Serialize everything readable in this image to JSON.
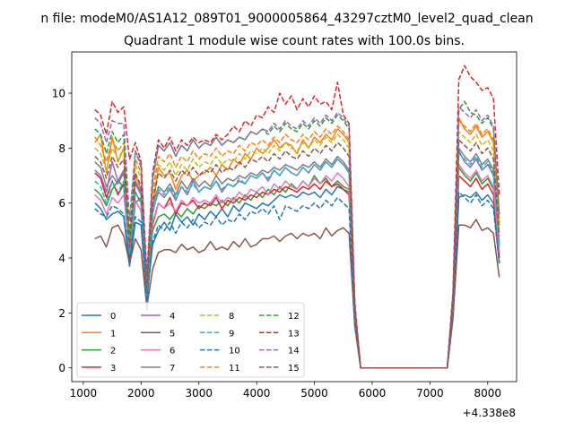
{
  "figure": {
    "suptitle": "n file: modeM0/AS1A12_089T01_9000005864_43297cztM0_level2_quad_clean",
    "title": "Quadrant 1 module wise count rates with 100.0s bins.",
    "offset_text": "+4.338e8"
  },
  "colors": [
    "#1f77b4",
    "#ff7f0e",
    "#2ca02c",
    "#d62728",
    "#9467bd",
    "#8c564b",
    "#e377c2",
    "#7f7f7f",
    "#bcbd22",
    "#17becf",
    "#1f77b4",
    "#ff7f0e",
    "#2ca02c",
    "#d62728",
    "#9467bd",
    "#8c564b"
  ],
  "chart_data": {
    "type": "line",
    "title": "Quadrant 1 module wise count rates with 100.0s bins.",
    "xlabel": "",
    "ylabel": "",
    "x_offset": 433800000,
    "xlim": [
      800,
      8500
    ],
    "ylim": [
      -0.5,
      11.5
    ],
    "xticks": [
      1000,
      2000,
      3000,
      4000,
      5000,
      6000,
      7000,
      8000
    ],
    "yticks": [
      0,
      2,
      4,
      6,
      8,
      10
    ],
    "grid": false,
    "legend": "lower-left, 4 columns",
    "x": [
      1200,
      1300,
      1400,
      1500,
      1600,
      1700,
      1800,
      1900,
      2000,
      2100,
      2200,
      2300,
      2400,
      2500,
      2600,
      2700,
      2800,
      2900,
      3000,
      3100,
      3200,
      3300,
      3400,
      3500,
      3600,
      3700,
      3800,
      3900,
      4000,
      4100,
      4200,
      4300,
      4400,
      4500,
      4600,
      4700,
      4800,
      4900,
      5000,
      5100,
      5200,
      5300,
      5400,
      5500,
      5600,
      5700,
      5800,
      5900,
      6000,
      6100,
      6200,
      6300,
      6400,
      6500,
      6600,
      6700,
      6800,
      6900,
      7000,
      7100,
      7200,
      7300,
      7400,
      7500,
      7600,
      7700,
      7800,
      7900,
      8000,
      8100,
      8200
    ],
    "series": [
      {
        "name": "0",
        "style": "solid",
        "values": [
          6.0,
          5.8,
          5.4,
          5.6,
          5.7,
          5.5,
          3.7,
          5.3,
          5.2,
          2.5,
          4.5,
          5.0,
          5.3,
          5.0,
          5.6,
          5.3,
          5.5,
          5.2,
          5.6,
          5.4,
          5.7,
          5.5,
          5.8,
          5.5,
          5.9,
          5.7,
          6.0,
          5.9,
          5.8,
          6.0,
          5.9,
          6.1,
          6.3,
          6.2,
          6.3,
          6.2,
          6.4,
          6.3,
          6.4,
          6.2,
          6.5,
          6.3,
          6.6,
          6.5,
          6.4,
          1.7,
          0,
          0,
          0,
          0,
          0,
          0,
          0,
          0,
          0,
          0,
          0,
          0,
          0,
          0,
          0,
          0,
          2.0,
          6.2,
          6.3,
          6.2,
          6.4,
          6.1,
          6.3,
          6.0,
          3.8
        ]
      },
      {
        "name": "1",
        "style": "solid",
        "values": [
          8.2,
          8.5,
          7.1,
          8.4,
          7.5,
          8.0,
          4.2,
          7.0,
          6.5,
          2.8,
          5.8,
          7.3,
          7.0,
          7.1,
          6.5,
          7.0,
          7.2,
          6.8,
          7.0,
          7.1,
          7.3,
          7.0,
          7.4,
          7.2,
          7.6,
          7.4,
          7.8,
          7.6,
          8.0,
          7.8,
          8.0,
          8.3,
          8.0,
          8.2,
          8.1,
          7.8,
          8.3,
          8.0,
          8.4,
          8.2,
          8.5,
          8.3,
          8.7,
          8.5,
          8.2,
          2.1,
          0,
          0,
          0,
          0,
          0,
          0,
          0,
          0,
          0,
          0,
          0,
          0,
          0,
          0,
          0,
          0,
          2.4,
          9.1,
          8.7,
          8.5,
          8.8,
          8.4,
          8.6,
          8.2,
          5.2
        ]
      },
      {
        "name": "2",
        "style": "solid",
        "values": [
          6.5,
          6.3,
          5.9,
          6.5,
          6.8,
          6.6,
          3.9,
          6.0,
          6.2,
          2.6,
          5.0,
          5.5,
          5.6,
          5.4,
          5.7,
          5.5,
          5.8,
          5.6,
          5.9,
          5.8,
          6.0,
          5.9,
          6.1,
          5.9,
          6.2,
          6.0,
          6.3,
          6.1,
          6.4,
          6.2,
          6.5,
          6.3,
          6.6,
          6.4,
          6.7,
          6.5,
          6.8,
          6.6,
          7.0,
          6.7,
          6.9,
          6.6,
          6.8,
          6.6,
          6.5,
          1.8,
          0,
          0,
          0,
          0,
          0,
          0,
          0,
          0,
          0,
          0,
          0,
          0,
          0,
          0,
          0,
          0,
          2.1,
          7.3,
          7.0,
          6.8,
          7.1,
          6.7,
          6.9,
          6.5,
          4.1
        ]
      },
      {
        "name": "3",
        "style": "solid",
        "values": [
          7.1,
          6.9,
          6.2,
          6.8,
          6.3,
          6.7,
          4.0,
          6.4,
          6.0,
          2.7,
          5.2,
          6.0,
          5.8,
          6.2,
          5.6,
          6.0,
          5.9,
          6.1,
          5.8,
          6.0,
          5.9,
          6.2,
          5.8,
          6.1,
          6.0,
          6.2,
          6.1,
          6.3,
          6.2,
          6.4,
          6.3,
          6.5,
          6.4,
          6.6,
          6.5,
          6.4,
          6.6,
          6.5,
          6.7,
          6.5,
          6.8,
          6.6,
          6.7,
          6.5,
          6.3,
          1.8,
          0,
          0,
          0,
          0,
          0,
          0,
          0,
          0,
          0,
          0,
          0,
          0,
          0,
          0,
          0,
          0,
          2.0,
          7.0,
          6.8,
          6.6,
          6.9,
          6.5,
          6.7,
          6.3,
          4.0
        ]
      },
      {
        "name": "4",
        "style": "solid",
        "values": [
          7.2,
          7.0,
          6.4,
          7.5,
          6.8,
          7.2,
          4.6,
          6.8,
          6.4,
          3.0,
          5.7,
          6.4,
          6.2,
          6.5,
          6.1,
          6.6,
          6.3,
          6.8,
          6.4,
          6.6,
          6.5,
          6.8,
          6.4,
          6.7,
          6.6,
          6.8,
          6.7,
          7.0,
          6.9,
          7.1,
          6.8,
          7.2,
          7.0,
          7.3,
          7.1,
          7.0,
          7.3,
          7.1,
          7.4,
          7.2,
          7.5,
          7.3,
          7.6,
          7.4,
          7.1,
          1.9,
          0,
          0,
          0,
          0,
          0,
          0,
          0,
          0,
          0,
          0,
          0,
          0,
          0,
          0,
          0,
          0,
          2.3,
          7.9,
          7.5,
          7.3,
          7.6,
          7.2,
          7.4,
          7.0,
          4.4
        ]
      },
      {
        "name": "5",
        "style": "solid",
        "values": [
          4.7,
          4.8,
          4.4,
          5.1,
          5.2,
          4.8,
          3.8,
          4.7,
          4.3,
          2.2,
          3.6,
          4.2,
          4.3,
          4.3,
          4.2,
          4.5,
          4.3,
          4.4,
          4.2,
          4.3,
          4.6,
          4.3,
          4.4,
          4.3,
          4.6,
          4.4,
          4.7,
          4.4,
          4.5,
          4.7,
          4.7,
          4.8,
          4.6,
          4.8,
          4.9,
          4.7,
          4.9,
          4.8,
          4.9,
          4.7,
          5.1,
          4.8,
          5.0,
          5.1,
          4.9,
          1.5,
          0,
          0,
          0,
          0,
          0,
          0,
          0,
          0,
          0,
          0,
          0,
          0,
          0,
          0,
          0,
          0,
          1.8,
          5.2,
          5.2,
          5.1,
          5.4,
          5.0,
          5.1,
          4.9,
          3.3
        ]
      },
      {
        "name": "6",
        "style": "solid",
        "values": [
          6.3,
          6.1,
          5.6,
          6.2,
          6.0,
          6.3,
          4.3,
          6.1,
          5.7,
          2.8,
          5.3,
          6.0,
          5.8,
          6.0,
          5.7,
          6.1,
          5.9,
          6.2,
          6.0,
          6.1,
          6.0,
          6.3,
          6.0,
          6.2,
          6.1,
          6.4,
          6.2,
          6.5,
          6.4,
          6.6,
          6.3,
          6.7,
          6.5,
          6.8,
          6.6,
          6.5,
          6.8,
          6.6,
          6.9,
          6.7,
          7.0,
          6.8,
          7.1,
          6.9,
          6.6,
          1.8,
          0,
          0,
          0,
          0,
          0,
          0,
          0,
          0,
          0,
          0,
          0,
          0,
          0,
          0,
          0,
          0,
          2.2,
          7.4,
          7.1,
          6.9,
          7.2,
          6.8,
          7.0,
          6.6,
          4.2
        ]
      },
      {
        "name": "7",
        "style": "solid",
        "values": [
          7.5,
          7.3,
          6.6,
          7.0,
          6.7,
          7.1,
          4.8,
          6.7,
          6.3,
          2.1,
          5.9,
          6.6,
          6.4,
          6.7,
          6.3,
          6.8,
          6.5,
          6.9,
          6.6,
          6.8,
          6.6,
          7.0,
          6.7,
          6.9,
          6.8,
          7.0,
          6.9,
          7.1,
          7.0,
          7.2,
          7.1,
          7.3,
          7.2,
          7.4,
          7.3,
          7.2,
          7.4,
          7.3,
          7.5,
          7.3,
          7.6,
          7.4,
          7.7,
          7.5,
          7.2,
          1.9,
          0,
          0,
          0,
          0,
          0,
          0,
          0,
          0,
          0,
          0,
          0,
          0,
          0,
          0,
          0,
          0,
          2.3,
          8.0,
          7.7,
          7.5,
          7.8,
          7.4,
          7.6,
          7.2,
          4.5
        ]
      },
      {
        "name": "8",
        "style": "dashed",
        "values": [
          8.0,
          7.8,
          7.2,
          8.0,
          7.6,
          8.0,
          4.4,
          7.4,
          6.9,
          2.9,
          6.2,
          7.4,
          7.2,
          7.5,
          7.0,
          7.4,
          7.2,
          7.6,
          7.3,
          7.5,
          7.4,
          7.7,
          7.4,
          7.6,
          7.5,
          7.8,
          7.6,
          7.9,
          7.8,
          8.0,
          7.8,
          8.1,
          7.9,
          8.2,
          8.0,
          7.9,
          8.2,
          8.0,
          8.3,
          8.1,
          8.4,
          8.2,
          8.5,
          8.3,
          8.0,
          2.1,
          0,
          0,
          0,
          0,
          0,
          0,
          0,
          0,
          0,
          0,
          0,
          0,
          0,
          0,
          0,
          0,
          2.5,
          8.6,
          8.4,
          8.2,
          8.5,
          8.1,
          8.3,
          7.9,
          5.0
        ]
      },
      {
        "name": "9",
        "style": "dashed",
        "values": [
          6.8,
          6.6,
          6.0,
          6.8,
          6.4,
          6.8,
          4.1,
          6.4,
          6.0,
          2.7,
          5.6,
          6.5,
          6.3,
          6.6,
          6.2,
          6.6,
          6.4,
          6.7,
          6.4,
          6.6,
          6.5,
          6.8,
          6.5,
          6.7,
          6.6,
          6.9,
          6.7,
          7.0,
          6.9,
          7.1,
          6.9,
          7.2,
          7.0,
          7.3,
          7.1,
          7.0,
          7.3,
          7.1,
          7.4,
          7.2,
          7.5,
          7.3,
          7.6,
          7.4,
          7.1,
          1.9,
          0,
          0,
          0,
          0,
          0,
          0,
          0,
          0,
          0,
          0,
          0,
          0,
          0,
          0,
          0,
          0,
          2.3,
          7.8,
          7.6,
          7.4,
          7.7,
          7.3,
          7.5,
          7.1,
          4.5
        ]
      },
      {
        "name": "10",
        "style": "dashed",
        "values": [
          5.8,
          5.6,
          5.5,
          5.9,
          5.8,
          5.6,
          3.8,
          5.5,
          5.3,
          2.4,
          4.6,
          5.2,
          5.0,
          5.3,
          4.9,
          5.3,
          5.1,
          5.4,
          5.1,
          5.3,
          5.2,
          5.5,
          5.2,
          5.4,
          5.3,
          5.6,
          5.4,
          5.7,
          5.6,
          5.8,
          5.6,
          5.9,
          5.4,
          5.9,
          5.8,
          5.7,
          5.9,
          5.8,
          6.0,
          5.8,
          6.1,
          5.9,
          6.2,
          6.0,
          5.8,
          1.6,
          0,
          0,
          0,
          0,
          0,
          0,
          0,
          0,
          0,
          0,
          0,
          0,
          0,
          0,
          0,
          0,
          1.9,
          6.4,
          6.2,
          6.0,
          6.3,
          5.9,
          6.1,
          5.8,
          3.8
        ]
      },
      {
        "name": "11",
        "style": "dashed",
        "values": [
          8.4,
          8.1,
          7.5,
          8.3,
          7.9,
          8.2,
          4.6,
          7.6,
          7.1,
          3.0,
          6.4,
          7.7,
          7.5,
          7.8,
          7.3,
          7.7,
          7.5,
          7.9,
          7.6,
          7.8,
          7.7,
          8.0,
          7.7,
          7.9,
          7.8,
          8.1,
          7.9,
          8.2,
          8.1,
          8.3,
          8.1,
          8.4,
          8.2,
          8.5,
          8.3,
          8.2,
          8.5,
          8.3,
          8.6,
          8.4,
          8.7,
          8.5,
          8.8,
          8.6,
          8.3,
          2.2,
          0,
          0,
          0,
          0,
          0,
          0,
          0,
          0,
          0,
          0,
          0,
          0,
          0,
          0,
          0,
          0,
          2.6,
          9.0,
          8.8,
          8.6,
          8.9,
          8.5,
          8.7,
          8.3,
          5.3
        ]
      },
      {
        "name": "12",
        "style": "dashed",
        "values": [
          8.7,
          8.5,
          7.8,
          8.6,
          8.2,
          8.5,
          4.9,
          7.9,
          7.4,
          3.1,
          6.8,
          8.1,
          7.9,
          8.2,
          7.7,
          8.1,
          7.9,
          8.3,
          8.0,
          8.2,
          8.1,
          8.4,
          8.1,
          8.3,
          8.2,
          8.4,
          8.3,
          8.6,
          8.5,
          8.7,
          8.5,
          8.8,
          8.6,
          8.9,
          8.7,
          8.6,
          8.9,
          8.7,
          9.0,
          8.8,
          9.1,
          8.9,
          9.2,
          9.0,
          8.7,
          2.3,
          0,
          0,
          0,
          0,
          0,
          0,
          0,
          0,
          0,
          0,
          0,
          0,
          0,
          0,
          0,
          0,
          2.7,
          9.4,
          9.7,
          9.3,
          9.2,
          8.9,
          9.1,
          8.7,
          5.6
        ]
      },
      {
        "name": "13",
        "style": "dashed",
        "values": [
          9.4,
          9.2,
          8.5,
          9.7,
          9.3,
          9.5,
          7.6,
          8.2,
          7.5,
          3.4,
          7.1,
          8.3,
          8.0,
          8.4,
          7.9,
          8.3,
          8.1,
          8.4,
          8.2,
          8.3,
          8.2,
          8.5,
          8.3,
          8.5,
          8.8,
          8.6,
          9.0,
          8.8,
          9.2,
          9.1,
          9.5,
          9.3,
          10.0,
          9.6,
          9.9,
          9.4,
          9.8,
          9.5,
          9.9,
          9.6,
          9.7,
          9.4,
          10.4,
          9.2,
          8.9,
          2.4,
          0,
          0,
          0,
          0,
          0,
          0,
          0,
          0,
          0,
          0,
          0,
          0,
          0,
          0,
          0,
          0,
          2.8,
          10.5,
          11.0,
          10.6,
          10.4,
          10.1,
          10.2,
          9.8,
          6.3
        ]
      },
      {
        "name": "14",
        "style": "dashed",
        "values": [
          9.1,
          8.9,
          8.2,
          9.0,
          8.9,
          8.9,
          5.4,
          7.9,
          7.3,
          3.2,
          6.9,
          8.1,
          7.9,
          8.2,
          7.7,
          8.1,
          7.9,
          8.3,
          8.0,
          8.2,
          8.1,
          8.4,
          8.1,
          8.3,
          8.2,
          8.4,
          8.3,
          8.6,
          8.5,
          8.7,
          8.6,
          8.9,
          8.7,
          9.0,
          8.8,
          8.7,
          9.0,
          8.8,
          9.1,
          8.9,
          9.2,
          9.0,
          9.3,
          9.1,
          8.8,
          2.3,
          0,
          0,
          0,
          0,
          0,
          0,
          0,
          0,
          0,
          0,
          0,
          0,
          0,
          0,
          0,
          0,
          2.7,
          9.5,
          9.3,
          9.1,
          9.4,
          9.0,
          9.2,
          8.8,
          5.6
        ]
      },
      {
        "name": "15",
        "style": "dashed",
        "values": [
          7.7,
          7.5,
          6.9,
          7.7,
          7.3,
          7.6,
          4.4,
          7.1,
          6.6,
          2.9,
          6.0,
          7.1,
          6.9,
          7.2,
          6.8,
          7.2,
          7.0,
          7.3,
          7.0,
          7.2,
          7.1,
          7.4,
          7.1,
          7.3,
          7.2,
          7.5,
          7.3,
          7.6,
          7.5,
          7.7,
          7.5,
          7.8,
          7.6,
          7.9,
          7.7,
          7.6,
          7.9,
          7.7,
          8.0,
          7.8,
          8.1,
          7.9,
          8.2,
          8.0,
          7.7,
          2.0,
          0,
          0,
          0,
          0,
          0,
          0,
          0,
          0,
          0,
          0,
          0,
          0,
          0,
          0,
          0,
          0,
          2.4,
          8.3,
          8.1,
          7.9,
          8.2,
          7.8,
          8.0,
          7.6,
          4.8
        ]
      }
    ]
  }
}
